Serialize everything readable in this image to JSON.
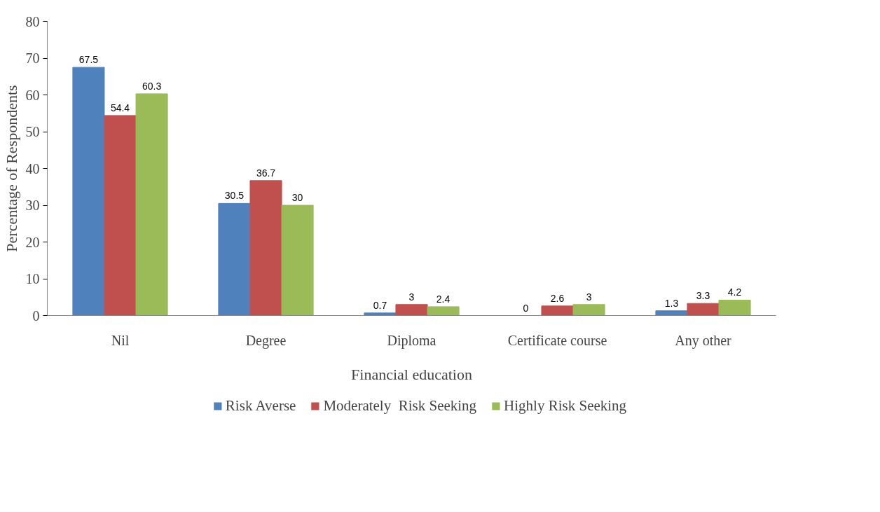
{
  "chart_data": {
    "type": "bar",
    "xlabel": "Financial education",
    "ylabel": "Percentage of Respondents",
    "categories": [
      "Nil",
      "Degree",
      "Diploma",
      "Certificate course",
      "Any other"
    ],
    "series": [
      {
        "name": "Risk Averse",
        "color": "#4f81bd",
        "values": [
          67.5,
          30.5,
          0.7,
          0,
          1.3
        ]
      },
      {
        "name": "Moderately  Risk Seeking",
        "color": "#c0504d",
        "values": [
          54.4,
          36.7,
          3,
          2.6,
          3.3
        ]
      },
      {
        "name": "Highly Risk Seeking",
        "color": "#9bbb59",
        "values": [
          60.3,
          30,
          2.4,
          3,
          4.2
        ]
      }
    ],
    "ylim": [
      0,
      80
    ],
    "yticks": [
      0,
      10,
      20,
      30,
      40,
      50,
      60,
      70,
      80
    ],
    "grid": false,
    "legend": "bottom",
    "data_labels": true
  }
}
